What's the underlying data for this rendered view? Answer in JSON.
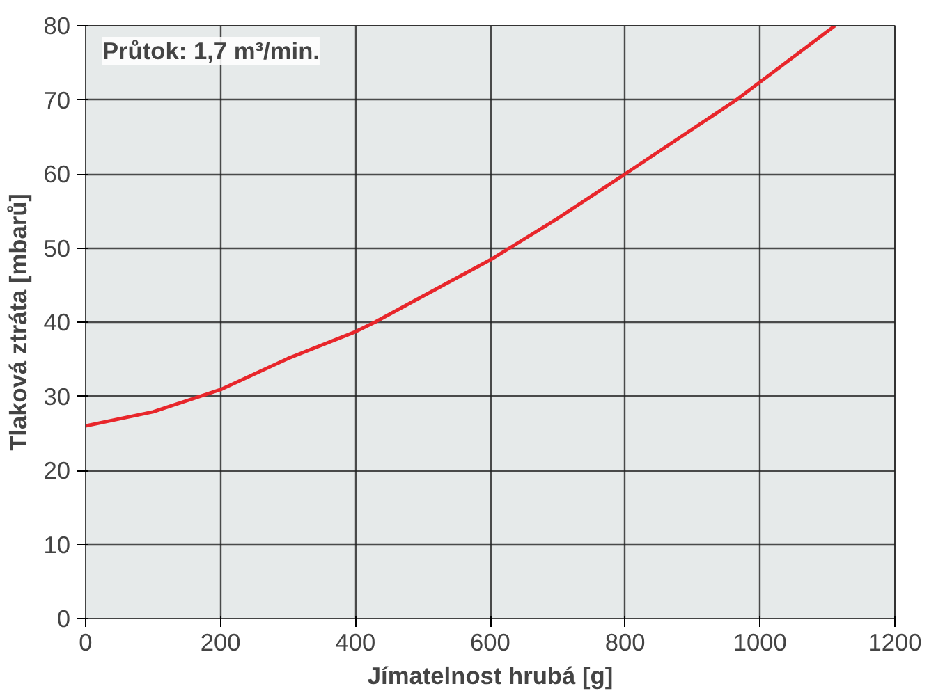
{
  "chart_data": {
    "type": "line",
    "xlabel": "Jímatelnost hrubá [g]",
    "ylabel": "Tlaková ztráta [mbarů]",
    "annotations": [
      "Průtok: 1,7 m³/min."
    ],
    "x": [
      0,
      100,
      200,
      300,
      400,
      429,
      500,
      600,
      700,
      800,
      965,
      1111
    ],
    "series": [
      {
        "color": "#e8262b",
        "values": [
          26,
          27.9,
          30.9,
          35.1,
          38.7,
          40,
          43.5,
          48.4,
          54,
          60,
          70,
          80
        ]
      }
    ],
    "xlim": [
      0,
      1200
    ],
    "ylim": [
      0,
      80
    ],
    "xticks": [
      0,
      200,
      400,
      600,
      800,
      1000,
      1200
    ],
    "yticks": [
      0,
      10,
      20,
      30,
      40,
      50,
      60,
      70,
      80
    ],
    "grid": true,
    "line_style": "solid"
  }
}
